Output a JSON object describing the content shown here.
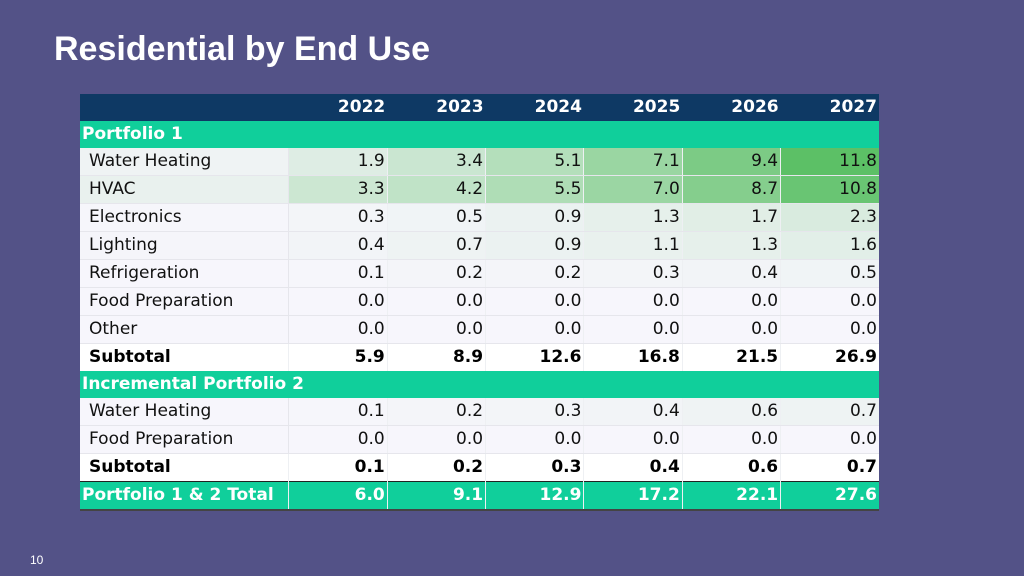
{
  "slide": {
    "title": "Residential by End Use",
    "page_number": "10"
  },
  "colors": {
    "background": "#535287",
    "header": "#0e3964",
    "section": "#10cf9b",
    "heat_low": "#f7f6fc",
    "heat_high": "#5cc066"
  },
  "table": {
    "header_label": "",
    "years": [
      "2022",
      "2023",
      "2024",
      "2025",
      "2026",
      "2027"
    ],
    "portfolio1": {
      "label": "Portfolio 1",
      "rows": [
        {
          "name": "Water Heating",
          "values": [
            "1.9",
            "3.4",
            "5.1",
            "7.1",
            "9.4",
            "11.8"
          ]
        },
        {
          "name": "HVAC",
          "values": [
            "3.3",
            "4.2",
            "5.5",
            "7.0",
            "8.7",
            "10.8"
          ]
        },
        {
          "name": "Electronics",
          "values": [
            "0.3",
            "0.5",
            "0.9",
            "1.3",
            "1.7",
            "2.3"
          ]
        },
        {
          "name": "Lighting",
          "values": [
            "0.4",
            "0.7",
            "0.9",
            "1.1",
            "1.3",
            "1.6"
          ]
        },
        {
          "name": "Refrigeration",
          "values": [
            "0.1",
            "0.2",
            "0.2",
            "0.3",
            "0.4",
            "0.5"
          ]
        },
        {
          "name": "Food Preparation",
          "values": [
            "0.0",
            "0.0",
            "0.0",
            "0.0",
            "0.0",
            "0.0"
          ]
        },
        {
          "name": "Other",
          "values": [
            "0.0",
            "0.0",
            "0.0",
            "0.0",
            "0.0",
            "0.0"
          ]
        }
      ],
      "subtotal": {
        "name": "Subtotal",
        "values": [
          "5.9",
          "8.9",
          "12.6",
          "16.8",
          "21.5",
          "26.9"
        ]
      }
    },
    "portfolio2": {
      "label": "Incremental Portfolio 2",
      "rows": [
        {
          "name": "Water Heating",
          "values": [
            "0.1",
            "0.2",
            "0.3",
            "0.4",
            "0.6",
            "0.7"
          ]
        },
        {
          "name": "Food Preparation",
          "values": [
            "0.0",
            "0.0",
            "0.0",
            "0.0",
            "0.0",
            "0.0"
          ]
        }
      ],
      "subtotal": {
        "name": "Subtotal",
        "values": [
          "0.1",
          "0.2",
          "0.3",
          "0.4",
          "0.6",
          "0.7"
        ]
      }
    },
    "total": {
      "name": "Portfolio 1 & 2 Total",
      "values": [
        "6.0",
        "9.1",
        "12.9",
        "17.2",
        "22.1",
        "27.6"
      ]
    }
  }
}
